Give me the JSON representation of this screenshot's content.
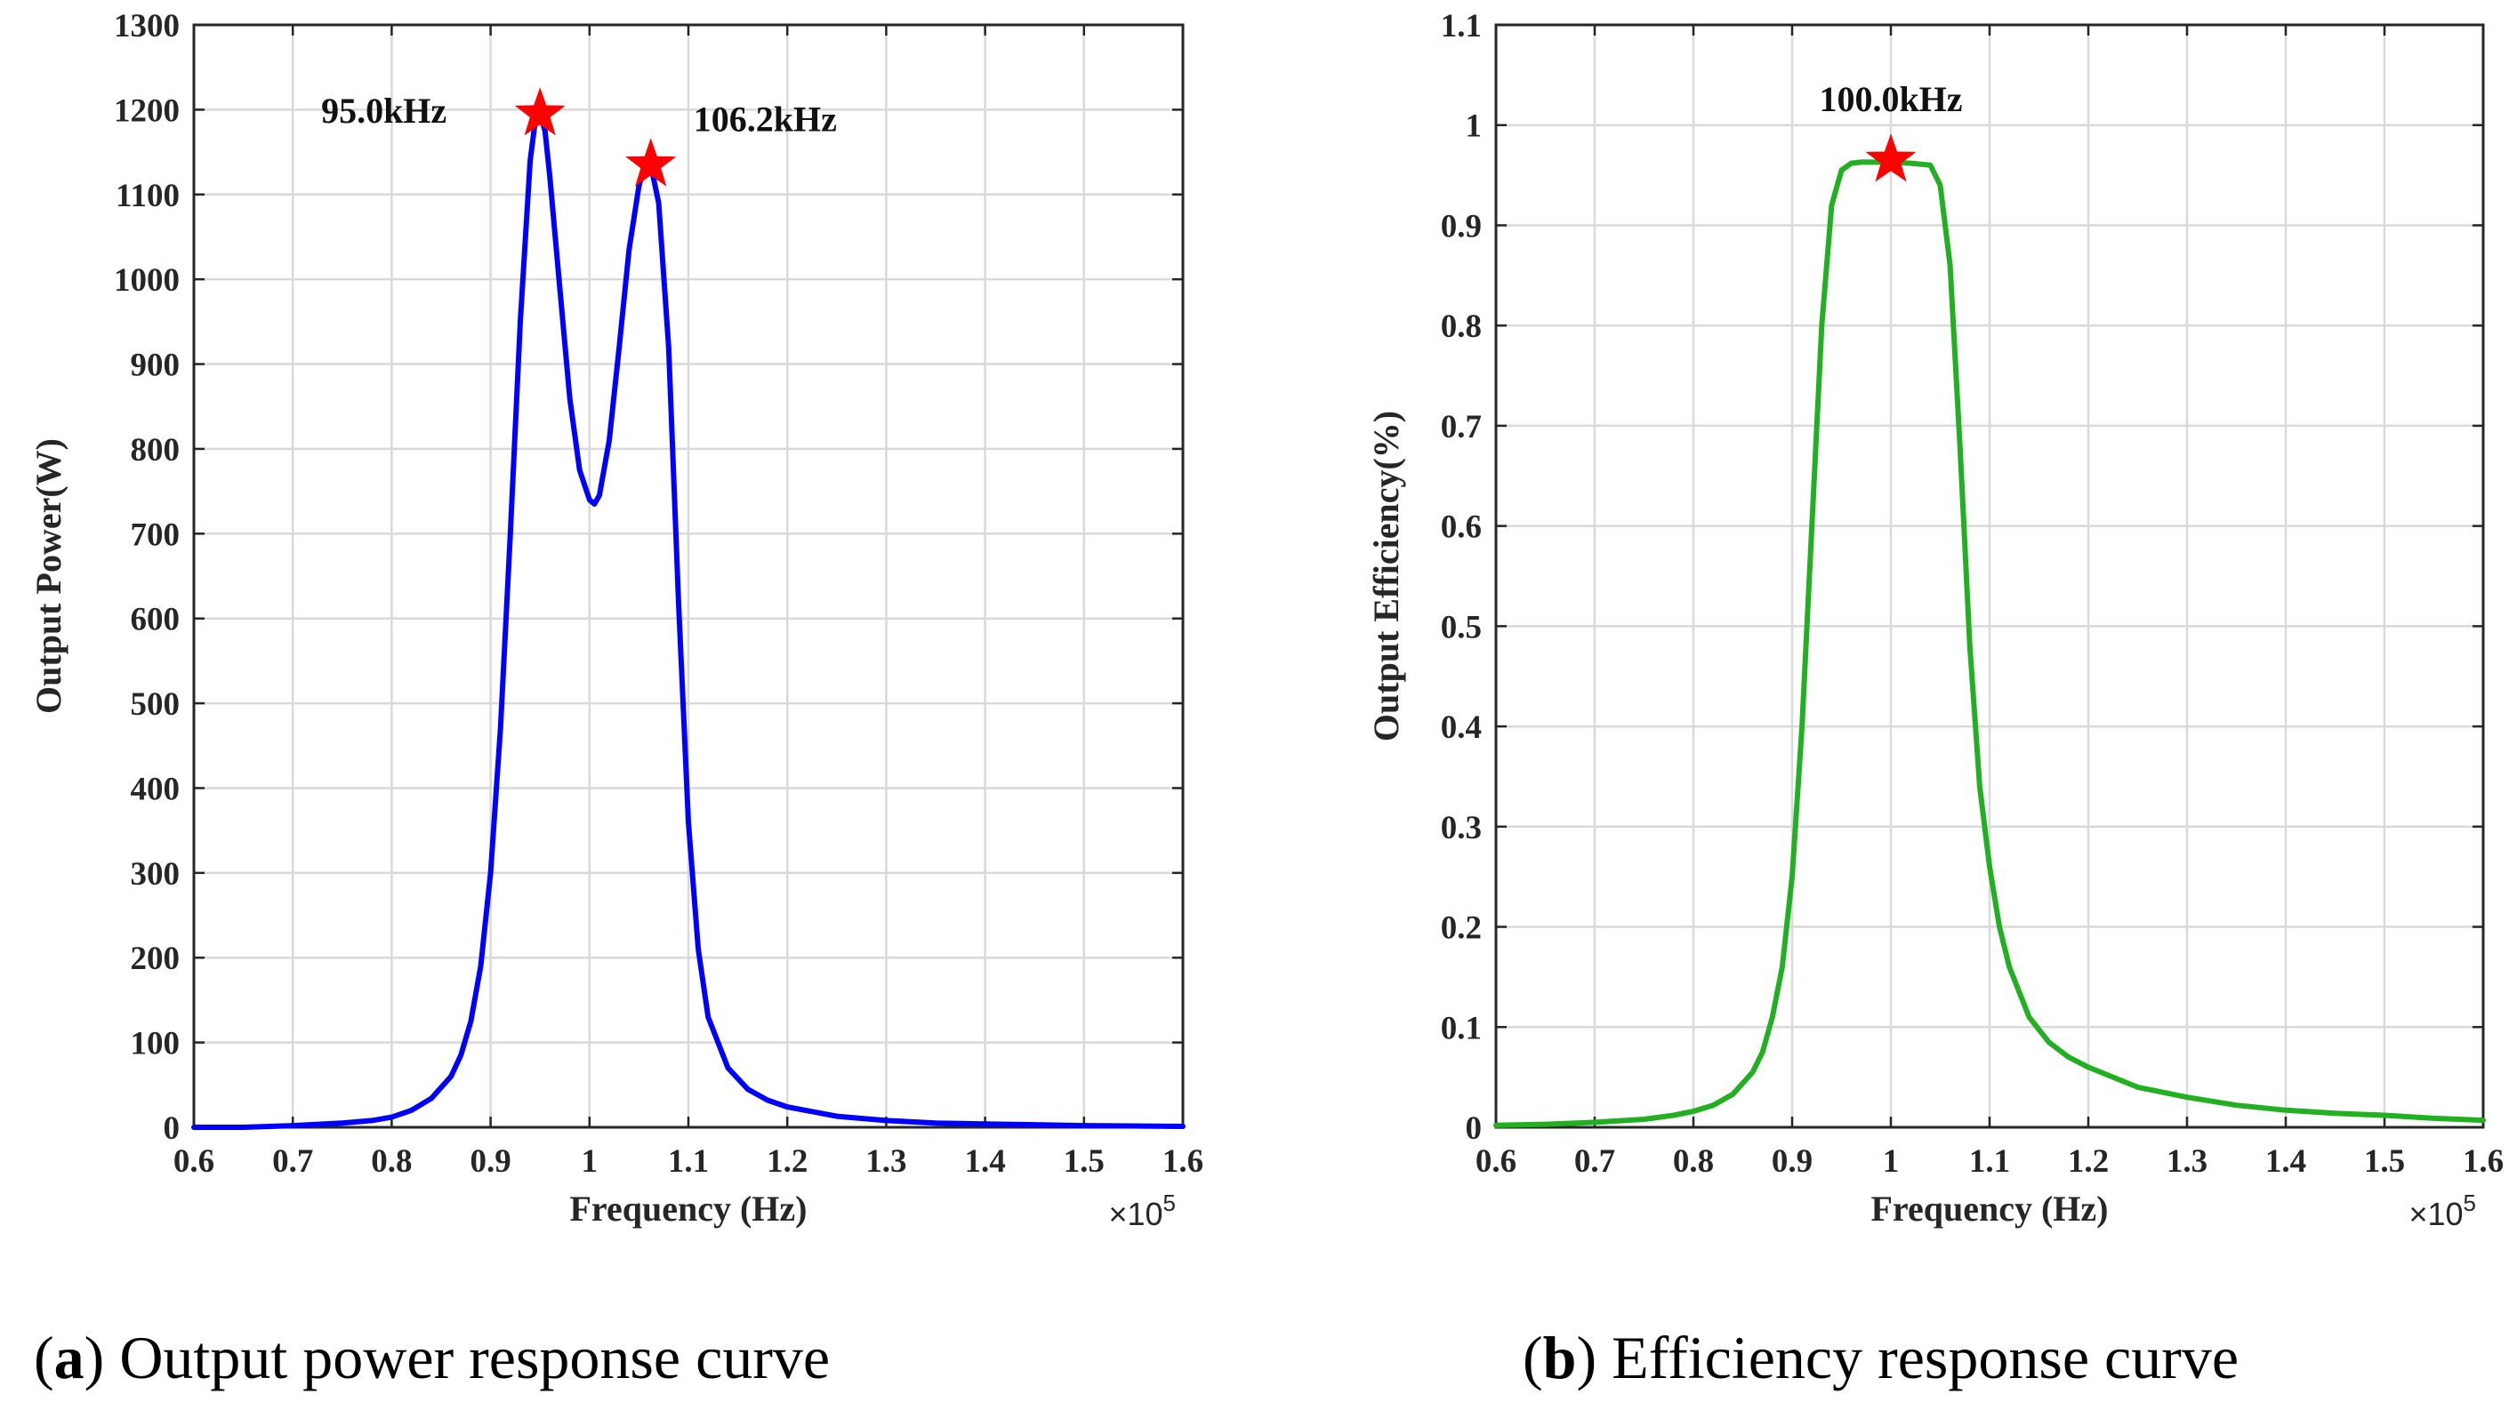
{
  "chart_data": [
    {
      "id": "a",
      "type": "line",
      "title": "",
      "xlabel": "Frequency (Hz)",
      "ylabel": "Output Power(W)",
      "x_multiplier": "×10",
      "x_multiplier_exp": "5",
      "xlim": [
        0.6,
        1.6
      ],
      "ylim": [
        0,
        1300
      ],
      "xticks": [
        0.6,
        0.7,
        0.8,
        0.9,
        1,
        1.1,
        1.2,
        1.3,
        1.4,
        1.5,
        1.6
      ],
      "xtick_labels": [
        "0.6",
        "0.7",
        "0.8",
        "0.9",
        "1",
        "1.1",
        "1.2",
        "1.3",
        "1.4",
        "1.5",
        "1.6"
      ],
      "yticks": [
        0,
        100,
        200,
        300,
        400,
        500,
        600,
        700,
        800,
        900,
        1000,
        1100,
        1200,
        1300
      ],
      "ytick_labels": [
        "0",
        "100",
        "200",
        "300",
        "400",
        "500",
        "600",
        "700",
        "800",
        "900",
        "1000",
        "1100",
        "1200",
        "1300"
      ],
      "grid": true,
      "series": [
        {
          "name": "Output Power",
          "color": "#0000ff",
          "x": [
            0.6,
            0.65,
            0.7,
            0.75,
            0.78,
            0.8,
            0.82,
            0.84,
            0.86,
            0.87,
            0.88,
            0.89,
            0.9,
            0.91,
            0.92,
            0.93,
            0.94,
            0.945,
            0.95,
            0.955,
            0.96,
            0.97,
            0.98,
            0.99,
            1.0,
            1.005,
            1.01,
            1.02,
            1.03,
            1.04,
            1.05,
            1.055,
            1.062,
            1.07,
            1.08,
            1.09,
            1.1,
            1.11,
            1.12,
            1.14,
            1.16,
            1.18,
            1.2,
            1.25,
            1.3,
            1.35,
            1.4,
            1.5,
            1.6
          ],
          "y": [
            0,
            0,
            2,
            5,
            8,
            12,
            20,
            34,
            60,
            85,
            125,
            190,
            300,
            470,
            700,
            950,
            1140,
            1185,
            1195,
            1175,
            1120,
            990,
            860,
            775,
            740,
            735,
            745,
            810,
            920,
            1035,
            1110,
            1130,
            1135,
            1090,
            920,
            620,
            360,
            210,
            130,
            70,
            45,
            32,
            24,
            13,
            8,
            5,
            4,
            2,
            1
          ]
        }
      ],
      "markers": [
        {
          "x": 0.95,
          "y": 1195,
          "label": "95.0kHz",
          "color": "#ff0000"
        },
        {
          "x": 1.062,
          "y": 1135,
          "label": "106.2kHz",
          "color": "#ff0000"
        }
      ]
    },
    {
      "id": "b",
      "type": "line",
      "title": "",
      "xlabel": "Frequency (Hz)",
      "ylabel": "Output Efficiency(%)",
      "x_multiplier": "×10",
      "x_multiplier_exp": "5",
      "xlim": [
        0.6,
        1.6
      ],
      "ylim": [
        0,
        1.1
      ],
      "xticks": [
        0.6,
        0.7,
        0.8,
        0.9,
        1,
        1.1,
        1.2,
        1.3,
        1.4,
        1.5,
        1.6
      ],
      "xtick_labels": [
        "0.6",
        "0.7",
        "0.8",
        "0.9",
        "1",
        "1.1",
        "1.2",
        "1.3",
        "1.4",
        "1.5",
        "1.6"
      ],
      "yticks": [
        0,
        0.1,
        0.2,
        0.3,
        0.4,
        0.5,
        0.6,
        0.7,
        0.8,
        0.9,
        1,
        1.1
      ],
      "ytick_labels": [
        "0",
        "0.1",
        "0.2",
        "0.3",
        "0.4",
        "0.5",
        "0.6",
        "0.7",
        "0.8",
        "0.9",
        "1",
        "1.1"
      ],
      "grid": true,
      "series": [
        {
          "name": "Output Efficiency",
          "color": "#22b022",
          "x": [
            0.6,
            0.65,
            0.7,
            0.75,
            0.78,
            0.8,
            0.82,
            0.84,
            0.86,
            0.87,
            0.88,
            0.89,
            0.9,
            0.91,
            0.92,
            0.93,
            0.94,
            0.95,
            0.96,
            0.97,
            0.98,
            1.0,
            1.02,
            1.04,
            1.05,
            1.06,
            1.07,
            1.08,
            1.09,
            1.1,
            1.11,
            1.12,
            1.14,
            1.16,
            1.18,
            1.2,
            1.25,
            1.3,
            1.35,
            1.4,
            1.45,
            1.5,
            1.55,
            1.6
          ],
          "y": [
            0.002,
            0.003,
            0.005,
            0.008,
            0.012,
            0.016,
            0.022,
            0.033,
            0.055,
            0.075,
            0.11,
            0.16,
            0.25,
            0.4,
            0.6,
            0.8,
            0.92,
            0.955,
            0.962,
            0.963,
            0.963,
            0.963,
            0.962,
            0.96,
            0.94,
            0.86,
            0.68,
            0.48,
            0.34,
            0.26,
            0.2,
            0.16,
            0.11,
            0.085,
            0.07,
            0.06,
            0.04,
            0.03,
            0.022,
            0.017,
            0.014,
            0.012,
            0.009,
            0.007
          ]
        }
      ],
      "markers": [
        {
          "x": 1.0,
          "y": 0.965,
          "label": "100.0kHz",
          "color": "#ff0000"
        }
      ]
    }
  ],
  "captions": [
    {
      "letter": "a",
      "text": "Output power response curve"
    },
    {
      "letter": "b",
      "text": "Efficiency response curve"
    }
  ]
}
